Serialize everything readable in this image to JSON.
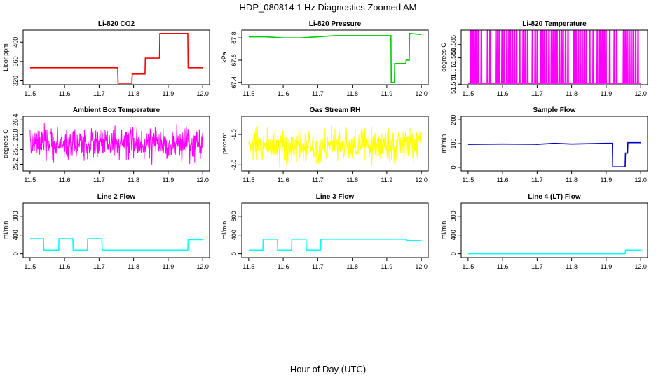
{
  "figure": {
    "title": "HDP_080814  1 Hz Diagnostics Zoomed AM",
    "xlabel": "Hour of Day (UTC)"
  },
  "chart_data": [
    {
      "type": "line",
      "title": "Li-820 CO2",
      "ylabel": "Licor ppm",
      "color": "#ff0000",
      "xlim": [
        11.5,
        12.0
      ],
      "ylim": [
        312,
        425
      ],
      "xticks": [
        "11.5",
        "11.6",
        "11.7",
        "11.8",
        "11.9",
        "12.0"
      ],
      "yticks": [
        "320",
        "360",
        "400"
      ],
      "x": [
        11.5,
        11.754,
        11.755,
        11.795,
        11.796,
        11.833,
        11.834,
        11.875,
        11.876,
        11.957,
        11.958,
        12.0
      ],
      "y": [
        347,
        347,
        315,
        315,
        334,
        334,
        367,
        367,
        418,
        418,
        347,
        347
      ]
    },
    {
      "type": "line",
      "title": "Li-820 Pressure",
      "ylabel": "kPa",
      "color": "#00cc00",
      "xlim": [
        11.5,
        12.0
      ],
      "ylim": [
        67.38,
        67.87
      ],
      "xticks": [
        "11.5",
        "11.6",
        "11.7",
        "11.8",
        "11.9",
        "12.0"
      ],
      "yticks": [
        "67.4",
        "67.6",
        "67.8"
      ],
      "x": [
        11.5,
        11.55,
        11.6,
        11.65,
        11.7,
        11.75,
        11.8,
        11.85,
        11.9,
        11.912,
        11.913,
        11.922,
        11.923,
        11.955,
        11.956,
        11.965,
        11.966,
        12.0
      ],
      "y": [
        67.81,
        67.81,
        67.8,
        67.8,
        67.81,
        67.82,
        67.82,
        67.82,
        67.82,
        67.82,
        67.4,
        67.4,
        67.57,
        67.57,
        67.6,
        67.6,
        67.84,
        67.83
      ]
    },
    {
      "type": "line",
      "title": "Li-820 Temperature",
      "ylabel": "degrees C",
      "color": "#ff00ff",
      "xlim": [
        11.5,
        12.0
      ],
      "ylim": [
        51.5698,
        51.5905
      ],
      "xticks": [
        "11.5",
        "11.6",
        "11.7",
        "11.8",
        "11.9",
        "12.0"
      ],
      "yticks": [
        "51.570",
        "51.575",
        "51.580",
        "51.585"
      ],
      "baseline": 51.5703,
      "spike": 51.5905,
      "spike_x": [
        11.508,
        11.511,
        11.514,
        11.517,
        11.522,
        11.529,
        11.538,
        11.556,
        11.563,
        11.58,
        11.585,
        11.59,
        11.598,
        11.604,
        11.612,
        11.618,
        11.622,
        11.628,
        11.634,
        11.64,
        11.649,
        11.659,
        11.665,
        11.672,
        11.686,
        11.694,
        11.7,
        11.711,
        11.716,
        11.721,
        11.727,
        11.734,
        11.741,
        11.746,
        11.752,
        11.757,
        11.764,
        11.77,
        11.775,
        11.782,
        11.789,
        11.806,
        11.812,
        11.818,
        11.824,
        11.83,
        11.836,
        11.842,
        11.852,
        11.862,
        11.874,
        11.88,
        11.884,
        11.889,
        11.894,
        11.899,
        11.91,
        11.923,
        11.93,
        11.95,
        11.955,
        11.96,
        11.966,
        11.972,
        11.978,
        11.985,
        11.992
      ]
    },
    {
      "type": "line",
      "title": "Ambient Box Temperature",
      "ylabel": "degrees C",
      "color": "#ff00ff",
      "xlim": [
        11.5,
        12.0
      ],
      "ylim": [
        25.02,
        26.5
      ],
      "xticks": [
        "11.5",
        "11.6",
        "11.7",
        "11.8",
        "11.9",
        "12.0"
      ],
      "yticks": [
        "25.2",
        "25.6",
        "26.0",
        "26.4"
      ],
      "noise": {
        "center": 25.75,
        "amplitude": 0.3,
        "min": 25.1,
        "max": 26.45
      }
    },
    {
      "type": "line",
      "title": "Gas Stream RH",
      "ylabel": "percent",
      "color": "#ffff00",
      "xlim": [
        11.5,
        12.0
      ],
      "ylim": [
        -2.2,
        -0.4
      ],
      "xticks": [
        "11.5",
        "11.6",
        "11.7",
        "11.8",
        "11.9",
        "12.0"
      ],
      "yticks": [
        "-2.0",
        "-1.0"
      ],
      "noise": {
        "center": -1.35,
        "amplitude": 0.4,
        "min": -2.15,
        "max": -0.5
      }
    },
    {
      "type": "line",
      "title": "Sample Flow",
      "ylabel": "ml/min",
      "color": "#0000cc",
      "xlim": [
        11.5,
        12.0
      ],
      "ylim": [
        -15,
        215
      ],
      "xticks": [
        "11.5",
        "11.6",
        "11.7",
        "11.8",
        "11.9",
        "12.0"
      ],
      "yticks": [
        "0",
        "100",
        "200"
      ],
      "x": [
        11.5,
        11.6,
        11.7,
        11.75,
        11.8,
        11.9,
        11.918,
        11.919,
        11.955,
        11.956,
        11.962,
        11.963,
        12.0
      ],
      "y": [
        97,
        98,
        97,
        101,
        98,
        101,
        101,
        2,
        2,
        60,
        60,
        104,
        104
      ]
    },
    {
      "type": "line",
      "title": "Line 2 Flow",
      "ylabel": "ml/min",
      "color": "#00ffff",
      "xlim": [
        11.5,
        12.0
      ],
      "ylim": [
        -80,
        1080
      ],
      "xticks": [
        "11.5",
        "11.6",
        "11.7",
        "11.8",
        "11.9",
        "12.0"
      ],
      "yticks": [
        "0",
        "400",
        "800"
      ],
      "x": [
        11.5,
        11.539,
        11.54,
        11.583,
        11.584,
        11.624,
        11.625,
        11.666,
        11.667,
        11.708,
        11.709,
        11.957,
        11.958,
        12.0
      ],
      "y": [
        320,
        320,
        80,
        80,
        320,
        320,
        80,
        80,
        320,
        320,
        80,
        80,
        300,
        300
      ]
    },
    {
      "type": "line",
      "title": "Line 3 Flow",
      "ylabel": "ml/min",
      "color": "#00ffff",
      "xlim": [
        11.5,
        12.0
      ],
      "ylim": [
        -80,
        1080
      ],
      "xticks": [
        "11.5",
        "11.6",
        "11.7",
        "11.8",
        "11.9",
        "12.0"
      ],
      "yticks": [
        "0",
        "400",
        "800"
      ],
      "x": [
        11.5,
        11.541,
        11.542,
        11.583,
        11.584,
        11.624,
        11.625,
        11.666,
        11.667,
        11.708,
        11.709,
        11.957,
        11.958,
        12.0
      ],
      "y": [
        80,
        80,
        310,
        310,
        80,
        80,
        310,
        310,
        80,
        80,
        310,
        310,
        280,
        280
      ]
    },
    {
      "type": "line",
      "title": "Line 4 (LT) Flow",
      "ylabel": "ml/min",
      "color": "#00ffff",
      "xlim": [
        11.5,
        12.0
      ],
      "ylim": [
        -80,
        1080
      ],
      "xticks": [
        "11.5",
        "11.6",
        "11.7",
        "11.8",
        "11.9",
        "12.0"
      ],
      "yticks": [
        "0",
        "400",
        "800"
      ],
      "x": [
        11.5,
        11.955,
        11.956,
        12.0
      ],
      "y": [
        0,
        0,
        80,
        80
      ]
    }
  ]
}
